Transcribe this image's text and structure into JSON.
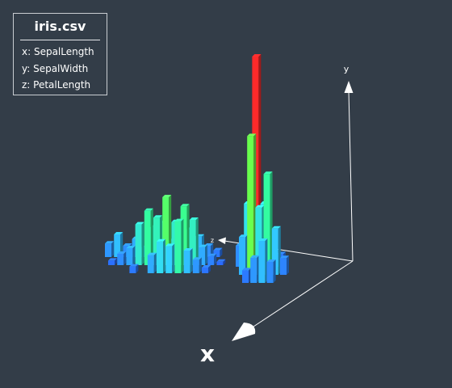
{
  "legend": {
    "title": "iris.csv",
    "x_text": "x: SepalLength",
    "y_text": "y: SepalWidth",
    "z_text": "z: PetalLength"
  },
  "axes": {
    "x": "x",
    "y": "y",
    "z": "z"
  },
  "colors": {
    "background": "#333d48",
    "axis": "#ffffff",
    "colorscale": [
      "#2a5cff",
      "#33d8ff",
      "#33ff99",
      "#88ff22",
      "#ff2a2a"
    ]
  },
  "chart_data": {
    "type": "bar3d",
    "x_label": "x",
    "y_label": "y",
    "z_label": "z",
    "value_range": [
      0,
      10
    ],
    "groups": [
      {
        "bars": [
          {
            "x": 0,
            "y": 0,
            "value": 1.2
          },
          {
            "x": 1,
            "y": 0,
            "value": 2.0
          },
          {
            "x": 2,
            "y": 0,
            "value": 1.0
          },
          {
            "x": 3,
            "y": 0,
            "value": 1.6
          },
          {
            "x": 4,
            "y": 0,
            "value": 0.8
          },
          {
            "x": 5,
            "y": 0,
            "value": 2.6
          },
          {
            "x": 6,
            "y": 0,
            "value": 3.0
          },
          {
            "x": 7,
            "y": 0,
            "value": 1.4
          },
          {
            "x": 8,
            "y": 0,
            "value": 0.9
          },
          {
            "x": 9,
            "y": 0,
            "value": 2.4
          },
          {
            "x": 10,
            "y": 0,
            "value": 1.8
          },
          {
            "x": 11,
            "y": 0,
            "value": 1.0
          },
          {
            "x": 12,
            "y": 0,
            "value": 0.6
          },
          {
            "x": 0,
            "y": 1,
            "value": 0.4
          },
          {
            "x": 1,
            "y": 1,
            "value": 1.0
          },
          {
            "x": 2,
            "y": 1,
            "value": 1.5
          },
          {
            "x": 3,
            "y": 1,
            "value": 3.6
          },
          {
            "x": 4,
            "y": 1,
            "value": 4.8
          },
          {
            "x": 5,
            "y": 1,
            "value": 4.2
          },
          {
            "x": 6,
            "y": 1,
            "value": 6.0
          },
          {
            "x": 7,
            "y": 1,
            "value": 3.8
          },
          {
            "x": 8,
            "y": 1,
            "value": 5.2
          },
          {
            "x": 9,
            "y": 1,
            "value": 4.0
          },
          {
            "x": 10,
            "y": 1,
            "value": 1.6
          },
          {
            "x": 11,
            "y": 1,
            "value": 0.8
          },
          {
            "x": 12,
            "y": 1,
            "value": 0.3
          },
          {
            "x": 2,
            "y": 2,
            "value": 0.6
          },
          {
            "x": 4,
            "y": 2,
            "value": 1.6
          },
          {
            "x": 5,
            "y": 2,
            "value": 2.8
          },
          {
            "x": 6,
            "y": 2,
            "value": 2.4
          },
          {
            "x": 7,
            "y": 2,
            "value": 4.6
          },
          {
            "x": 8,
            "y": 2,
            "value": 2.0
          },
          {
            "x": 9,
            "y": 2,
            "value": 1.2
          },
          {
            "x": 10,
            "y": 2,
            "value": 0.5
          }
        ]
      },
      {
        "bars": [
          {
            "x": 0,
            "y": 0,
            "value": 1.0
          },
          {
            "x": 1,
            "y": 0,
            "value": 3.0
          },
          {
            "x": 2,
            "y": 0,
            "value": 10.0
          },
          {
            "x": 3,
            "y": 0,
            "value": 3.0
          },
          {
            "x": 4,
            "y": 0,
            "value": 1.4
          },
          {
            "x": 5,
            "y": 0,
            "value": 0.6
          },
          {
            "x": 0,
            "y": 1,
            "value": 1.8
          },
          {
            "x": 1,
            "y": 1,
            "value": 6.6
          },
          {
            "x": 2,
            "y": 1,
            "value": 3.2
          },
          {
            "x": 3,
            "y": 1,
            "value": 4.8
          },
          {
            "x": 4,
            "y": 1,
            "value": 2.2
          },
          {
            "x": 5,
            "y": 1,
            "value": 0.8
          },
          {
            "x": 0,
            "y": 2,
            "value": 0.6
          },
          {
            "x": 1,
            "y": 2,
            "value": 1.2
          },
          {
            "x": 2,
            "y": 2,
            "value": 2.0
          },
          {
            "x": 3,
            "y": 2,
            "value": 1.0
          }
        ]
      }
    ]
  }
}
